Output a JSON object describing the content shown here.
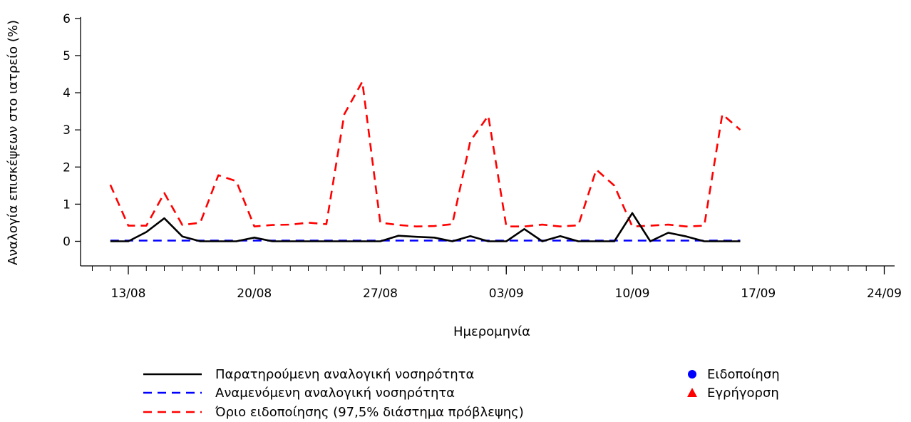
{
  "chart_data": {
    "type": "line",
    "xlabel": "Ημερομηνία",
    "ylabel": "Αναλογία επισκέψεων στο ιατρείο (%)",
    "ylim": [
      -0.7,
      6.25
    ],
    "y_ticks": [
      0,
      1,
      2,
      3,
      4,
      5,
      6
    ],
    "x_range": [
      "2023-08-11",
      "2023-09-24"
    ],
    "x_tick_labels": [
      {
        "date": "2023-08-13",
        "label": "13/08"
      },
      {
        "date": "2023-08-20",
        "label": "20/08"
      },
      {
        "date": "2023-08-27",
        "label": "27/08"
      },
      {
        "date": "2023-09-03",
        "label": "03/09"
      },
      {
        "date": "2023-09-10",
        "label": "10/09"
      },
      {
        "date": "2023-09-17",
        "label": "17/09"
      },
      {
        "date": "2023-09-24",
        "label": "24/09"
      }
    ],
    "x": [
      "2023-08-12",
      "2023-08-13",
      "2023-08-14",
      "2023-08-15",
      "2023-08-16",
      "2023-08-17",
      "2023-08-18",
      "2023-08-19",
      "2023-08-20",
      "2023-08-21",
      "2023-08-22",
      "2023-08-23",
      "2023-08-24",
      "2023-08-25",
      "2023-08-26",
      "2023-08-27",
      "2023-08-28",
      "2023-08-29",
      "2023-08-30",
      "2023-08-31",
      "2023-09-01",
      "2023-09-02",
      "2023-09-03",
      "2023-09-04",
      "2023-09-05",
      "2023-09-06",
      "2023-09-07",
      "2023-09-08",
      "2023-09-09",
      "2023-09-10",
      "2023-09-11",
      "2023-09-12",
      "2023-09-13",
      "2023-09-14",
      "2023-09-15",
      "2023-09-16"
    ],
    "series": [
      {
        "name": "Παρατηρούμενη αναλογική νοσηρότητα",
        "color": "#000000",
        "style": "solid",
        "values": [
          0,
          0,
          0.25,
          0.62,
          0.13,
          0,
          0,
          0,
          0.1,
          0,
          0,
          0,
          0,
          0,
          0,
          0,
          0.15,
          0.12,
          0.1,
          0,
          0.14,
          0,
          0,
          0.33,
          0,
          0.14,
          0,
          0,
          0,
          0.76,
          0,
          0.23,
          0.13,
          0,
          0,
          0
        ]
      },
      {
        "name": "Αναμενόμενη αναλογική νοσηρότητα",
        "color": "#0000ff",
        "style": "dashed",
        "values": [
          0.02,
          0.02,
          0.02,
          0.02,
          0.02,
          0.02,
          0.02,
          0.02,
          0.02,
          0.02,
          0.02,
          0.02,
          0.02,
          0.02,
          0.02,
          0.02,
          0.02,
          0.02,
          0.02,
          0.02,
          0.02,
          0.02,
          0.02,
          0.02,
          0.02,
          0.02,
          0.02,
          0.02,
          0.02,
          0.02,
          0.02,
          0.02,
          0.02,
          0.02,
          0.02,
          0.02
        ]
      },
      {
        "name": "Όριο ειδοποίησης (97,5% διάστημα πρόβλεψης)",
        "color": "#ff0000",
        "style": "dashed",
        "values": [
          1.52,
          0.42,
          0.42,
          1.3,
          0.44,
          0.5,
          1.78,
          1.62,
          0.4,
          0.44,
          0.45,
          0.5,
          0.46,
          3.42,
          4.3,
          0.5,
          0.44,
          0.4,
          0.41,
          0.46,
          2.7,
          3.38,
          0.4,
          0.4,
          0.45,
          0.4,
          0.43,
          1.93,
          1.5,
          0.4,
          0.42,
          0.45,
          0.4,
          0.42,
          3.42,
          3.0
        ]
      }
    ],
    "legend": {
      "placement": "bottom",
      "lines": [
        {
          "label": "Παρατηρούμενη αναλογική νοσηρότητα",
          "color": "#000000",
          "style": "solid"
        },
        {
          "label": "Αναμενόμενη αναλογική νοσηρότητα",
          "color": "#0000ff",
          "style": "dashed"
        },
        {
          "label": "Όριο ειδοποίησης (97,5% διάστημα πρόβλεψης)",
          "color": "#ff0000",
          "style": "dashed"
        }
      ],
      "markers": [
        {
          "label": "Ειδοποίηση",
          "color": "#0000ff",
          "shape": "circle"
        },
        {
          "label": "Εγρήγορση",
          "color": "#ff0000",
          "shape": "triangle"
        }
      ]
    },
    "grid": false
  }
}
